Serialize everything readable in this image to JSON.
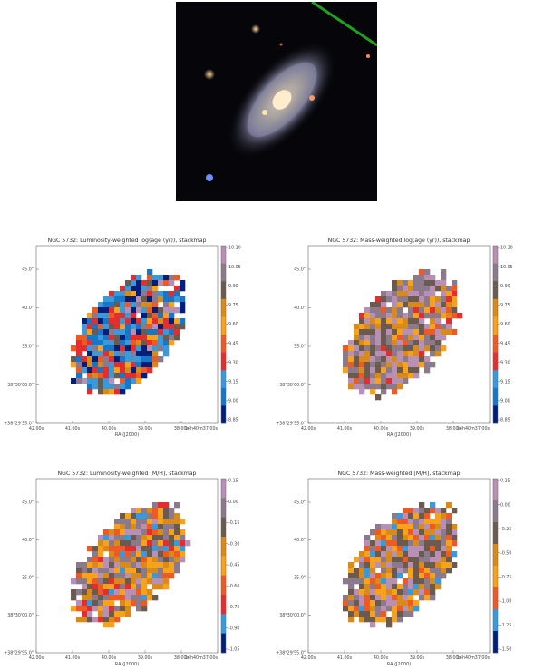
{
  "image": {
    "alt": "galaxy image",
    "colors": {
      "sky": "#05050a",
      "trail": "#1fa020"
    }
  },
  "chart_data": [
    {
      "type": "heatmap",
      "title": "NGC 5732: Luminosity-weighted log(age (yr)), stackmap",
      "xlabel": "RA (J2000)",
      "ylabel": "",
      "xticks": [
        "42.00s",
        "41.00s",
        "40.00s",
        "39.00s",
        "38.00s",
        "14h40m37.00s"
      ],
      "yticks": [
        "45.0\"",
        "40.0\"",
        "35.0\"",
        "38°30'00.0\"",
        "+38°29'55.0\""
      ],
      "colorbar": {
        "ticks": [
          "10.20",
          "10.05",
          "9.90",
          "9.75",
          "9.60",
          "9.45",
          "9.30",
          "9.15",
          "9.00",
          "8.85"
        ],
        "colors": [
          "#b88fb5",
          "#8a7a8c",
          "#6b5b4f",
          "#d88a1a",
          "#f7a21c",
          "#ee5a24",
          "#e52d2d",
          "#3a9ad9",
          "#1677c9",
          "#001f7a"
        ]
      },
      "palette_weights": [
        1,
        1,
        1,
        1,
        1,
        2,
        3,
        4,
        3,
        2
      ]
    },
    {
      "type": "heatmap",
      "title": "NGC 5732: Mass-weighted log(age (yr)), stackmap",
      "xlabel": "RA (J2000)",
      "ylabel": "",
      "xticks": [
        "42.00s",
        "41.00s",
        "40.00s",
        "39.00s",
        "38.00s",
        "14h40m37.00s"
      ],
      "yticks": [
        "45.0\"",
        "40.0\"",
        "35.0\"",
        "38°30'00.0\"",
        "+38°29'55.0\""
      ],
      "colorbar": {
        "ticks": [
          "10.20",
          "10.05",
          "9.90",
          "9.75",
          "9.60",
          "9.45",
          "9.30",
          "9.15",
          "9.00",
          "8.85"
        ],
        "colors": [
          "#b88fb5",
          "#8a7a8c",
          "#6b5b4f",
          "#d88a1a",
          "#f7a21c",
          "#ee5a24",
          "#e52d2d",
          "#3a9ad9",
          "#1677c9",
          "#001f7a"
        ]
      },
      "palette_weights": [
        5,
        5,
        4,
        3,
        2,
        1,
        1,
        0,
        0,
        0
      ]
    },
    {
      "type": "heatmap",
      "title": "NGC 5732: Luminosity-weighted [M/H], stackmap",
      "xlabel": "RA (J2000)",
      "ylabel": "",
      "xticks": [
        "42.00s",
        "41.00s",
        "40.00s",
        "39.00s",
        "38.00s",
        "14h40m37.00s"
      ],
      "yticks": [
        "45.0\"",
        "40.0\"",
        "35.0\"",
        "38°30'00.0\"",
        "+38°29'55.0\""
      ],
      "colorbar": {
        "ticks": [
          "0.15",
          "0.00",
          "-0.15",
          "-0.30",
          "-0.45",
          "-0.60",
          "-0.75",
          "-0.90",
          "-1.05"
        ],
        "colors": [
          "#b88fb5",
          "#8a7a8c",
          "#6b5b4f",
          "#d88a1a",
          "#f7a21c",
          "#ee5a24",
          "#e52d2d",
          "#3a9ad9",
          "#001f7a"
        ]
      },
      "palette_weights": [
        3,
        4,
        3,
        3,
        4,
        2,
        1,
        1,
        0
      ]
    },
    {
      "type": "heatmap",
      "title": "NGC 5732: Mass-weighted [M/H], stackmap",
      "xlabel": "RA (J2000)",
      "ylabel": "",
      "xticks": [
        "42.00s",
        "41.00s",
        "40.00s",
        "39.00s",
        "38.00s",
        "14h40m37.00s"
      ],
      "yticks": [
        "45.0\"",
        "40.0\"",
        "35.0\"",
        "38°30'00.0\"",
        "+38°29'55.0\""
      ],
      "colorbar": {
        "ticks": [
          "0.25",
          "0.00",
          "-0.25",
          "-0.50",
          "-0.75",
          "-1.00",
          "-1.25",
          "-1.50"
        ],
        "colors": [
          "#b88fb5",
          "#8a7a8c",
          "#6b5b4f",
          "#d88a1a",
          "#f7a21c",
          "#ee5a24",
          "#3a9ad9",
          "#001f7a"
        ]
      },
      "palette_weights": [
        4,
        4,
        4,
        3,
        3,
        2,
        1,
        0
      ]
    }
  ]
}
